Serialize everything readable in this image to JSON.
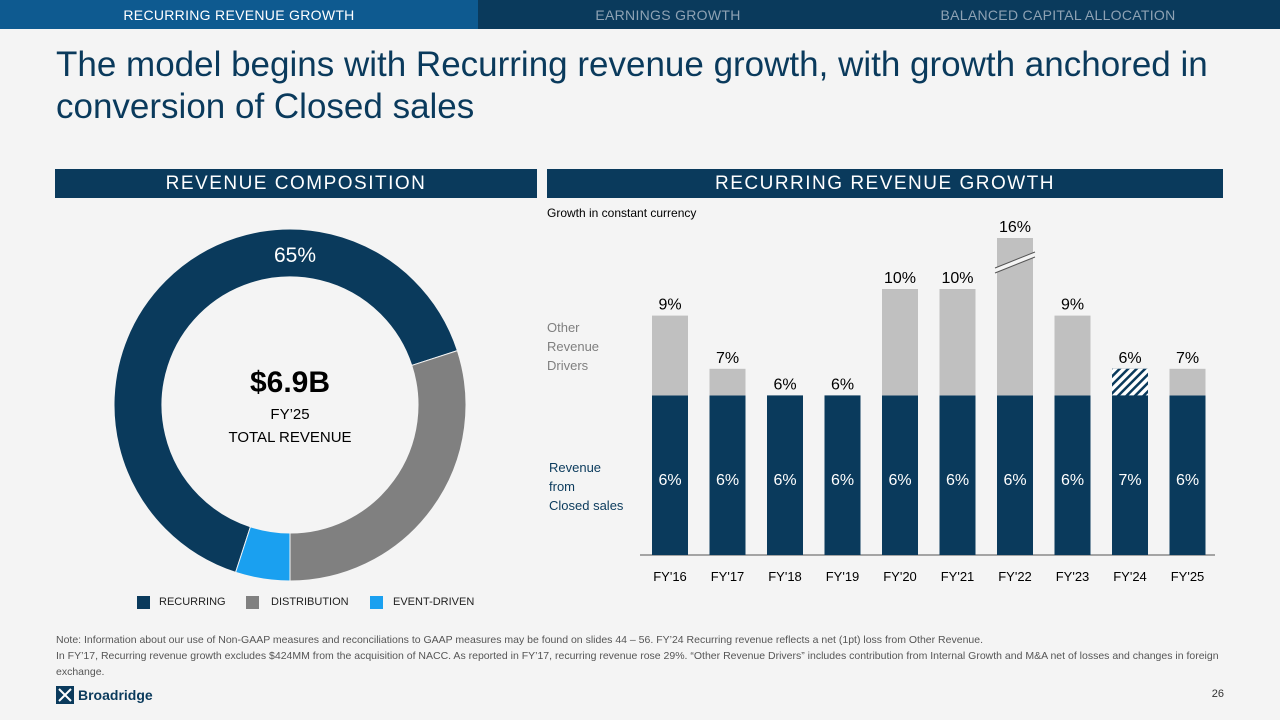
{
  "nav": {
    "tabs": [
      {
        "label": "RECURRING REVENUE GROWTH",
        "active": true
      },
      {
        "label": "EARNINGS GROWTH",
        "active": false
      },
      {
        "label": "BALANCED CAPITAL ALLOCATION",
        "active": false
      }
    ]
  },
  "title": "The model begins with Recurring revenue growth, with growth anchored in conversion of Closed sales",
  "left_header": "REVENUE COMPOSITION",
  "right_header": "RECURRING REVENUE GROWTH",
  "donut": {
    "big_label": "65%",
    "center_value": "$6.9B",
    "center_sub1": "FY’25",
    "center_sub2": "TOTAL REVENUE"
  },
  "legend": [
    {
      "label": "RECURRING",
      "color": "#0a3a5c"
    },
    {
      "label": "DISTRIBUTION",
      "color": "#808080"
    },
    {
      "label": "EVENT-DRIVEN",
      "color": "#1aa0f0"
    }
  ],
  "chart_data": [
    {
      "type": "pie",
      "categories": [
        "RECURRING",
        "DISTRIBUTION",
        "EVENT-DRIVEN"
      ],
      "values": [
        65,
        30,
        5
      ],
      "data_labels": [
        "65%",
        "",
        ""
      ],
      "colors": [
        "#0a3a5c",
        "#808080",
        "#1aa0f0"
      ]
    },
    {
      "type": "bar",
      "stacked": true,
      "subtitle": "Growth in constant currency",
      "categories": [
        "FY'16",
        "FY'17",
        "FY'18",
        "FY'19",
        "FY'20",
        "FY'21",
        "FY'22",
        "FY'23",
        "FY'24",
        "FY'25"
      ],
      "series": [
        {
          "name": "Revenue from Closed sales",
          "values": [
            6,
            6,
            6,
            6,
            6,
            6,
            6,
            6,
            7,
            6
          ],
          "color": "#0a3a5c",
          "labels": [
            "6%",
            "6%",
            "6%",
            "6%",
            "6%",
            "6%",
            "6%",
            "6%",
            "7%",
            "6%"
          ]
        },
        {
          "name": "Other Revenue Drivers",
          "values": [
            3,
            1,
            0,
            0,
            4,
            4,
            10,
            3,
            -1,
            1
          ],
          "color": "#c0c0c0"
        }
      ],
      "totals": [
        "9%",
        "7%",
        "6%",
        "6%",
        "10%",
        "10%",
        "16%",
        "9%",
        "6%",
        "7%"
      ],
      "notes": {
        "FY'22": "axis break",
        "FY'24": "hatched (1pt) loss from Other Revenue"
      }
    }
  ],
  "note": {
    "line1": "Note: Information about our use of Non-GAAP measures and reconciliations to GAAP measures may be found on slides 44 – 56. FY’24 Recurring revenue reflects a net (1pt) loss from Other Revenue.",
    "line2": "In FY’17, Recurring revenue growth excludes $424MM from the acquisition of NACC. As reported in FY’17, recurring revenue rose 29%. “Other Revenue Drivers” includes contribution from Internal Growth and M&A net of losses and changes in foreign exchange."
  },
  "logo_text": "Broadridge",
  "page_number": "26"
}
